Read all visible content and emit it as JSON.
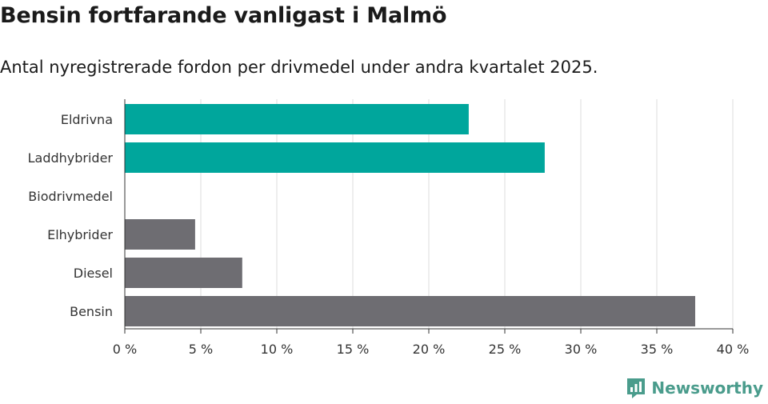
{
  "header": {
    "title": "Bensin fortfarande vanligast i Malmö",
    "subtitle": "Antal nyregistrerade fordon per drivmedel under andra kvartalet 2025."
  },
  "brand": {
    "name": "Newsworthy",
    "icon": "newsworthy-logo-icon",
    "color": "#4a9c8c"
  },
  "colors": {
    "highlight": "#00a69c",
    "default": "#6e6d72",
    "grid": "#dddddd",
    "axis": "#333333"
  },
  "chart_data": {
    "type": "bar",
    "orientation": "horizontal",
    "categories": [
      "Eldrivna",
      "Laddhybrider",
      "Biodrivmedel",
      "Elhybrider",
      "Diesel",
      "Bensin"
    ],
    "values": [
      22.6,
      27.6,
      0,
      4.6,
      7.7,
      37.5
    ],
    "highlighted": [
      true,
      true,
      true,
      false,
      false,
      false
    ],
    "xlim": [
      0,
      40
    ],
    "xticks": [
      0,
      5,
      10,
      15,
      20,
      25,
      30,
      35,
      40
    ],
    "xtick_labels": [
      "0 %",
      "5 %",
      "10 %",
      "15 %",
      "20 %",
      "25 %",
      "30 %",
      "35 %",
      "40 %"
    ],
    "grid": true,
    "legend": "none"
  }
}
